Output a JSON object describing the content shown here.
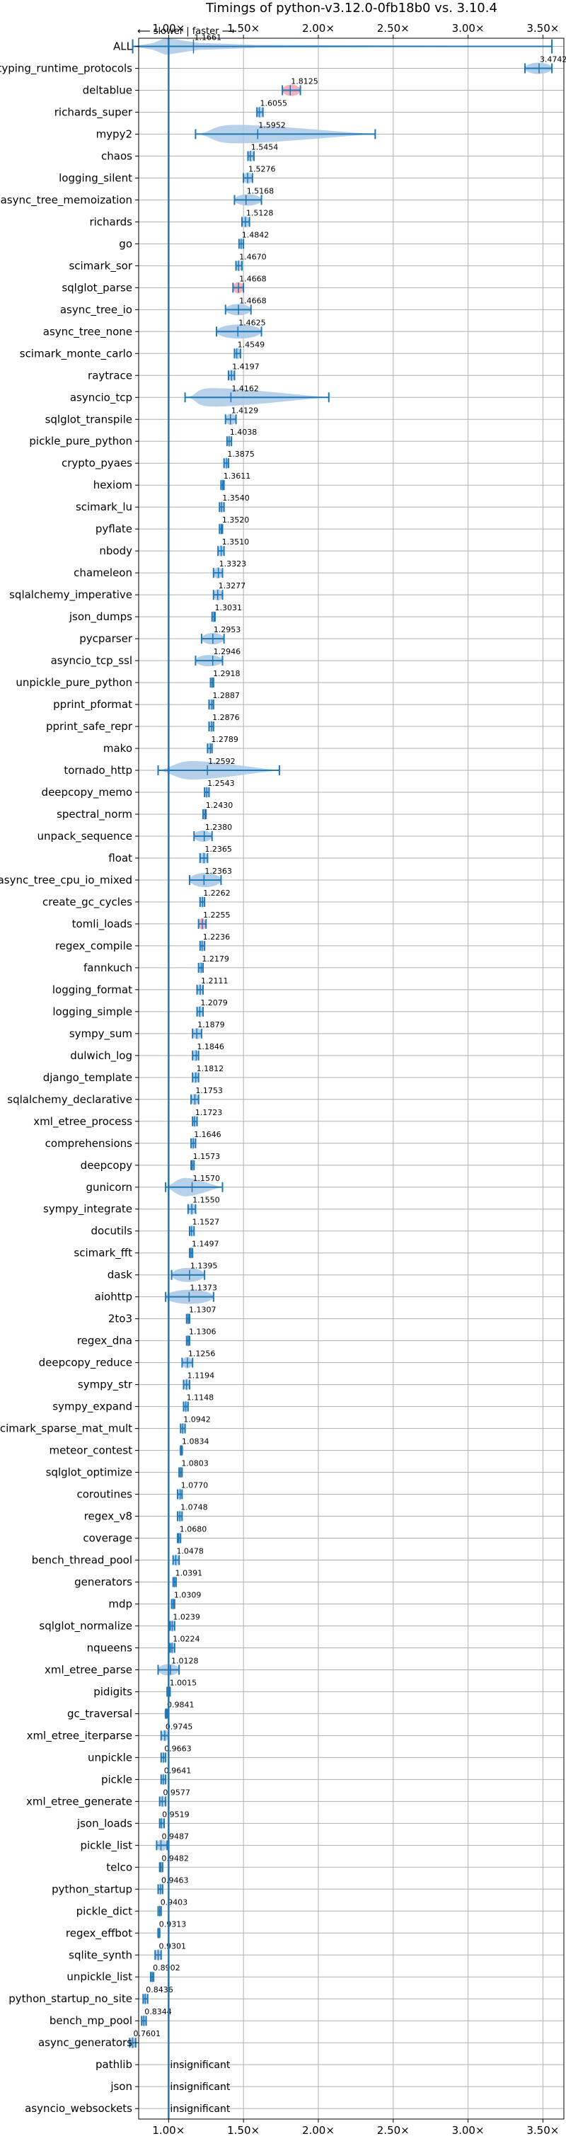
{
  "chart_data": {
    "type": "violin",
    "title": "Timings of python-v3.12.0-0fb18b0 vs. 3.10.4",
    "direction_label": "⟵ slower | faster ⟶",
    "x_ticks": [
      {
        "value": 1.0,
        "label": "1.00×"
      },
      {
        "value": 1.5,
        "label": "1.50×"
      },
      {
        "value": 2.0,
        "label": "2.00×"
      },
      {
        "value": 2.5,
        "label": "2.50×"
      },
      {
        "value": 3.0,
        "label": "3.00×"
      },
      {
        "value": 3.5,
        "label": "3.50×"
      }
    ],
    "xlim": [
      0.8,
      3.64
    ],
    "reference_line": 1.0,
    "grid": true,
    "colors": {
      "violin": "#aac9e6",
      "line": "#1f77b4",
      "slower": "#f4a7b4",
      "grid": "#b0b0b0"
    },
    "benchmarks": [
      {
        "name": "ALL",
        "label": "1.1661",
        "value": 1.1661,
        "min": 0.76,
        "max": 3.56,
        "kind": "all"
      },
      {
        "name": "typing_runtime_protocols",
        "label": "3.4742",
        "value": 3.4742,
        "min": 3.38,
        "max": 3.56
      },
      {
        "name": "deltablue",
        "label": "1.8125",
        "value": 1.8125,
        "min": 1.76,
        "max": 1.88,
        "slower": true
      },
      {
        "name": "richards_super",
        "label": "1.6055",
        "value": 1.6055,
        "min": 1.59,
        "max": 1.63
      },
      {
        "name": "mypy2",
        "label": "1.5952",
        "value": 1.5952,
        "min": 1.18,
        "max": 2.38,
        "wide": true
      },
      {
        "name": "chaos",
        "label": "1.5454",
        "value": 1.5454,
        "min": 1.53,
        "max": 1.57
      },
      {
        "name": "logging_silent",
        "label": "1.5276",
        "value": 1.5276,
        "min": 1.5,
        "max": 1.56
      },
      {
        "name": "async_tree_memoization",
        "label": "1.5168",
        "value": 1.5168,
        "min": 1.44,
        "max": 1.62
      },
      {
        "name": "richards",
        "label": "1.5128",
        "value": 1.5128,
        "min": 1.49,
        "max": 1.54
      },
      {
        "name": "go",
        "label": "1.4842",
        "value": 1.4842,
        "min": 1.47,
        "max": 1.5
      },
      {
        "name": "scimark_sor",
        "label": "1.4670",
        "value": 1.467,
        "min": 1.45,
        "max": 1.49
      },
      {
        "name": "sqlglot_parse",
        "label": "1.4668",
        "value": 1.4668,
        "min": 1.43,
        "max": 1.5,
        "slower": true
      },
      {
        "name": "async_tree_io",
        "label": "1.4668",
        "value": 1.4668,
        "min": 1.38,
        "max": 1.55
      },
      {
        "name": "async_tree_none",
        "label": "1.4625",
        "value": 1.4625,
        "min": 1.32,
        "max": 1.62
      },
      {
        "name": "scimark_monte_carlo",
        "label": "1.4549",
        "value": 1.4549,
        "min": 1.44,
        "max": 1.48
      },
      {
        "name": "raytrace",
        "label": "1.4197",
        "value": 1.4197,
        "min": 1.4,
        "max": 1.44
      },
      {
        "name": "asyncio_tcp",
        "label": "1.4162",
        "value": 1.4162,
        "min": 1.11,
        "max": 2.07,
        "wide": true
      },
      {
        "name": "sqlglot_transpile",
        "label": "1.4129",
        "value": 1.4129,
        "min": 1.38,
        "max": 1.45
      },
      {
        "name": "pickle_pure_python",
        "label": "1.4038",
        "value": 1.4038,
        "min": 1.39,
        "max": 1.42
      },
      {
        "name": "crypto_pyaes",
        "label": "1.3875",
        "value": 1.3875,
        "min": 1.37,
        "max": 1.4
      },
      {
        "name": "hexiom",
        "label": "1.3611",
        "value": 1.3611,
        "min": 1.35,
        "max": 1.37
      },
      {
        "name": "scimark_lu",
        "label": "1.3540",
        "value": 1.354,
        "min": 1.34,
        "max": 1.37
      },
      {
        "name": "pyflate",
        "label": "1.3520",
        "value": 1.352,
        "min": 1.34,
        "max": 1.36
      },
      {
        "name": "nbody",
        "label": "1.3510",
        "value": 1.351,
        "min": 1.33,
        "max": 1.37
      },
      {
        "name": "chameleon",
        "label": "1.3323",
        "value": 1.3323,
        "min": 1.3,
        "max": 1.36
      },
      {
        "name": "sqlalchemy_imperative",
        "label": "1.3277",
        "value": 1.3277,
        "min": 1.3,
        "max": 1.36
      },
      {
        "name": "json_dumps",
        "label": "1.3031",
        "value": 1.3031,
        "min": 1.29,
        "max": 1.31
      },
      {
        "name": "pycparser",
        "label": "1.2953",
        "value": 1.2953,
        "min": 1.22,
        "max": 1.37
      },
      {
        "name": "asyncio_tcp_ssl",
        "label": "1.2946",
        "value": 1.2946,
        "min": 1.18,
        "max": 1.36
      },
      {
        "name": "unpickle_pure_python",
        "label": "1.2918",
        "value": 1.2918,
        "min": 1.28,
        "max": 1.3
      },
      {
        "name": "pprint_pformat",
        "label": "1.2887",
        "value": 1.2887,
        "min": 1.27,
        "max": 1.3
      },
      {
        "name": "pprint_safe_repr",
        "label": "1.2876",
        "value": 1.2876,
        "min": 1.27,
        "max": 1.3
      },
      {
        "name": "mako",
        "label": "1.2789",
        "value": 1.2789,
        "min": 1.26,
        "max": 1.29
      },
      {
        "name": "tornado_http",
        "label": "1.2592",
        "value": 1.2592,
        "min": 0.93,
        "max": 1.74,
        "wide": true
      },
      {
        "name": "deepcopy_memo",
        "label": "1.2543",
        "value": 1.2543,
        "min": 1.24,
        "max": 1.27
      },
      {
        "name": "spectral_norm",
        "label": "1.2430",
        "value": 1.243,
        "min": 1.23,
        "max": 1.25
      },
      {
        "name": "unpack_sequence",
        "label": "1.2380",
        "value": 1.238,
        "min": 1.17,
        "max": 1.29
      },
      {
        "name": "float",
        "label": "1.2365",
        "value": 1.2365,
        "min": 1.21,
        "max": 1.26
      },
      {
        "name": "async_tree_cpu_io_mixed",
        "label": "1.2363",
        "value": 1.2363,
        "min": 1.14,
        "max": 1.35
      },
      {
        "name": "create_gc_cycles",
        "label": "1.2262",
        "value": 1.2262,
        "min": 1.21,
        "max": 1.24
      },
      {
        "name": "tomli_loads",
        "label": "1.2255",
        "value": 1.2255,
        "min": 1.2,
        "max": 1.25,
        "slower": true
      },
      {
        "name": "regex_compile",
        "label": "1.2236",
        "value": 1.2236,
        "min": 1.21,
        "max": 1.24
      },
      {
        "name": "fannkuch",
        "label": "1.2179",
        "value": 1.2179,
        "min": 1.2,
        "max": 1.23
      },
      {
        "name": "logging_format",
        "label": "1.2111",
        "value": 1.2111,
        "min": 1.19,
        "max": 1.23
      },
      {
        "name": "logging_simple",
        "label": "1.2079",
        "value": 1.2079,
        "min": 1.19,
        "max": 1.23
      },
      {
        "name": "sympy_sum",
        "label": "1.1879",
        "value": 1.1879,
        "min": 1.16,
        "max": 1.22
      },
      {
        "name": "dulwich_log",
        "label": "1.1846",
        "value": 1.1846,
        "min": 1.16,
        "max": 1.2
      },
      {
        "name": "django_template",
        "label": "1.1812",
        "value": 1.1812,
        "min": 1.16,
        "max": 1.2
      },
      {
        "name": "sqlalchemy_declarative",
        "label": "1.1753",
        "value": 1.1753,
        "min": 1.15,
        "max": 1.2
      },
      {
        "name": "xml_etree_process",
        "label": "1.1723",
        "value": 1.1723,
        "min": 1.16,
        "max": 1.19
      },
      {
        "name": "comprehensions",
        "label": "1.1646",
        "value": 1.1646,
        "min": 1.15,
        "max": 1.18
      },
      {
        "name": "deepcopy",
        "label": "1.1573",
        "value": 1.1573,
        "min": 1.15,
        "max": 1.17
      },
      {
        "name": "gunicorn",
        "label": "1.1570",
        "value": 1.157,
        "min": 0.98,
        "max": 1.36,
        "wide": true
      },
      {
        "name": "sympy_integrate",
        "label": "1.1550",
        "value": 1.155,
        "min": 1.13,
        "max": 1.18
      },
      {
        "name": "docutils",
        "label": "1.1527",
        "value": 1.1527,
        "min": 1.14,
        "max": 1.17
      },
      {
        "name": "scimark_fft",
        "label": "1.1497",
        "value": 1.1497,
        "min": 1.14,
        "max": 1.16
      },
      {
        "name": "dask",
        "label": "1.1395",
        "value": 1.1395,
        "min": 1.02,
        "max": 1.24
      },
      {
        "name": "aiohttp",
        "label": "1.1373",
        "value": 1.1373,
        "min": 0.98,
        "max": 1.3
      },
      {
        "name": "2to3",
        "label": "1.1307",
        "value": 1.1307,
        "min": 1.12,
        "max": 1.14
      },
      {
        "name": "regex_dna",
        "label": "1.1306",
        "value": 1.1306,
        "min": 1.12,
        "max": 1.14
      },
      {
        "name": "deepcopy_reduce",
        "label": "1.1256",
        "value": 1.1256,
        "min": 1.09,
        "max": 1.16
      },
      {
        "name": "sympy_str",
        "label": "1.1194",
        "value": 1.1194,
        "min": 1.1,
        "max": 1.14
      },
      {
        "name": "sympy_expand",
        "label": "1.1148",
        "value": 1.1148,
        "min": 1.1,
        "max": 1.13
      },
      {
        "name": "scimark_sparse_mat_mult",
        "label": "1.0942",
        "value": 1.0942,
        "min": 1.08,
        "max": 1.11
      },
      {
        "name": "meteor_contest",
        "label": "1.0834",
        "value": 1.0834,
        "min": 1.08,
        "max": 1.09
      },
      {
        "name": "sqlglot_optimize",
        "label": "1.0803",
        "value": 1.0803,
        "min": 1.07,
        "max": 1.09
      },
      {
        "name": "coroutines",
        "label": "1.0770",
        "value": 1.077,
        "min": 1.06,
        "max": 1.09
      },
      {
        "name": "regex_v8",
        "label": "1.0748",
        "value": 1.0748,
        "min": 1.06,
        "max": 1.09
      },
      {
        "name": "coverage",
        "label": "1.0680",
        "value": 1.068,
        "min": 1.06,
        "max": 1.08
      },
      {
        "name": "bench_thread_pool",
        "label": "1.0478",
        "value": 1.0478,
        "min": 1.03,
        "max": 1.07
      },
      {
        "name": "generators",
        "label": "1.0391",
        "value": 1.0391,
        "min": 1.03,
        "max": 1.05
      },
      {
        "name": "mdp",
        "label": "1.0309",
        "value": 1.0309,
        "min": 1.02,
        "max": 1.04
      },
      {
        "name": "sqlglot_normalize",
        "label": "1.0239",
        "value": 1.0239,
        "min": 1.01,
        "max": 1.04
      },
      {
        "name": "nqueens",
        "label": "1.0224",
        "value": 1.0224,
        "min": 1.01,
        "max": 1.04
      },
      {
        "name": "xml_etree_parse",
        "label": "1.0128",
        "value": 1.0128,
        "min": 0.93,
        "max": 1.07
      },
      {
        "name": "pidigits",
        "label": "1.0015",
        "value": 1.0015,
        "min": 0.99,
        "max": 1.01
      },
      {
        "name": "gc_traversal",
        "label": "0.9841",
        "value": 0.9841,
        "min": 0.98,
        "max": 0.99
      },
      {
        "name": "xml_etree_iterparse",
        "label": "0.9745",
        "value": 0.9745,
        "min": 0.95,
        "max": 1.0
      },
      {
        "name": "unpickle",
        "label": "0.9663",
        "value": 0.9663,
        "min": 0.95,
        "max": 0.98
      },
      {
        "name": "pickle",
        "label": "0.9641",
        "value": 0.9641,
        "min": 0.95,
        "max": 0.98
      },
      {
        "name": "xml_etree_generate",
        "label": "0.9577",
        "value": 0.9577,
        "min": 0.94,
        "max": 0.98
      },
      {
        "name": "json_loads",
        "label": "0.9519",
        "value": 0.9519,
        "min": 0.94,
        "max": 0.97
      },
      {
        "name": "pickle_list",
        "label": "0.9487",
        "value": 0.9487,
        "min": 0.92,
        "max": 0.99
      },
      {
        "name": "telco",
        "label": "0.9482",
        "value": 0.9482,
        "min": 0.94,
        "max": 0.96
      },
      {
        "name": "python_startup",
        "label": "0.9463",
        "value": 0.9463,
        "min": 0.93,
        "max": 0.96
      },
      {
        "name": "pickle_dict",
        "label": "0.9403",
        "value": 0.9403,
        "min": 0.93,
        "max": 0.95
      },
      {
        "name": "regex_effbot",
        "label": "0.9313",
        "value": 0.9313,
        "min": 0.93,
        "max": 0.94
      },
      {
        "name": "sqlite_synth",
        "label": "0.9301",
        "value": 0.9301,
        "min": 0.91,
        "max": 0.95
      },
      {
        "name": "unpickle_list",
        "label": "0.8902",
        "value": 0.8902,
        "min": 0.88,
        "max": 0.9
      },
      {
        "name": "python_startup_no_site",
        "label": "0.8436",
        "value": 0.8436,
        "min": 0.83,
        "max": 0.86
      },
      {
        "name": "bench_mp_pool",
        "label": "0.8344",
        "value": 0.8344,
        "min": 0.82,
        "max": 0.85
      },
      {
        "name": "async_generators",
        "label": "0.7601",
        "value": 0.7601,
        "min": 0.74,
        "max": 0.78
      },
      {
        "name": "pathlib",
        "label": "insignificant",
        "value": null
      },
      {
        "name": "json",
        "label": "insignificant",
        "value": null
      },
      {
        "name": "asyncio_websockets",
        "label": "insignificant",
        "value": null
      }
    ]
  }
}
